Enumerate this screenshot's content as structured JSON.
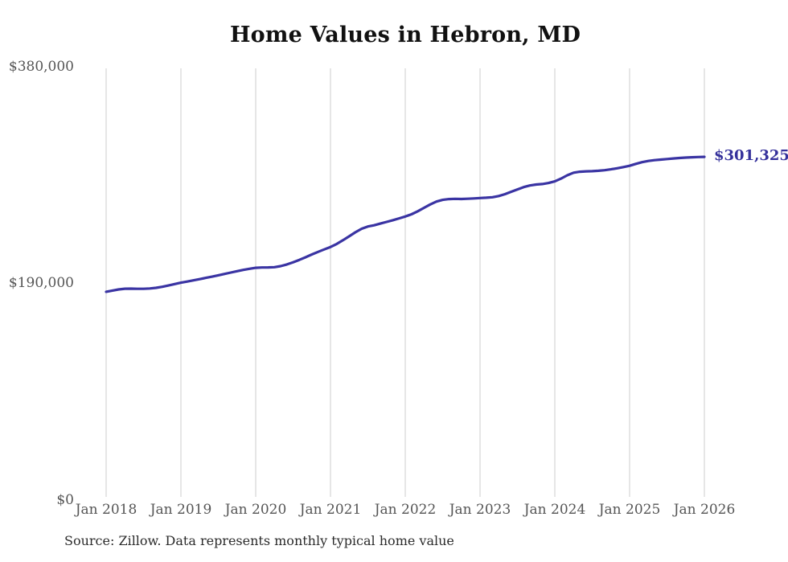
{
  "chart": {
    "title": "Home Values in Hebron, MD",
    "source": "Source: Zillow. Data represents monthly typical home value",
    "end_label": "$301,325",
    "colors": {
      "line": "#3a34a3",
      "end_label": "#34309b",
      "gridline": "#cccccc",
      "axis_text": "#555555",
      "title_text": "#111111",
      "source_text": "#2b2b2b"
    }
  },
  "chart_data": {
    "type": "line",
    "title": "Home Values in Hebron, MD",
    "xlabel": "",
    "ylabel": "",
    "frequency": "monthly",
    "x_start": "Jan 2018",
    "x_end": "Jan 2026",
    "x_tick_labels": [
      "Jan 2018",
      "Jan 2019",
      "Jan 2020",
      "Jan 2021",
      "Jan 2022",
      "Jan 2023",
      "Jan 2024",
      "Jan 2025",
      "Jan 2026"
    ],
    "y_ticks": [
      0,
      190000,
      380000
    ],
    "y_tick_labels": [
      "$0",
      "$190,000",
      "$380,000"
    ],
    "ylim": [
      0,
      380000
    ],
    "grid": "vertical-only",
    "legend_position": "none",
    "last_value": 301325,
    "last_point_label": "$301,325",
    "series": [
      {
        "name": "Typical home value",
        "values": [
          183000,
          184100,
          185100,
          185700,
          185800,
          185600,
          185600,
          185900,
          186500,
          187400,
          188500,
          189800,
          191000,
          192000,
          193000,
          194100,
          195200,
          196300,
          197500,
          198700,
          199900,
          201100,
          202200,
          203200,
          204000,
          204300,
          204400,
          204600,
          205500,
          207000,
          208900,
          211000,
          213300,
          215700,
          218000,
          220200,
          222300,
          225000,
          228200,
          231700,
          235200,
          238300,
          240300,
          241300,
          242800,
          244300,
          245800,
          247400,
          249000,
          251000,
          253600,
          256600,
          259600,
          262100,
          263600,
          264300,
          264500,
          264400,
          264600,
          264900,
          265200,
          265500,
          265900,
          267000,
          268600,
          270700,
          272800,
          274800,
          276200,
          277100,
          277500,
          278400,
          279800,
          282300,
          285200,
          287400,
          288300,
          288600,
          288800,
          289100,
          289600,
          290400,
          291300,
          292400,
          293500,
          295200,
          296700,
          297700,
          298400,
          298900,
          299400,
          299900,
          300300,
          300700,
          301000,
          301200,
          301325
        ]
      }
    ]
  }
}
